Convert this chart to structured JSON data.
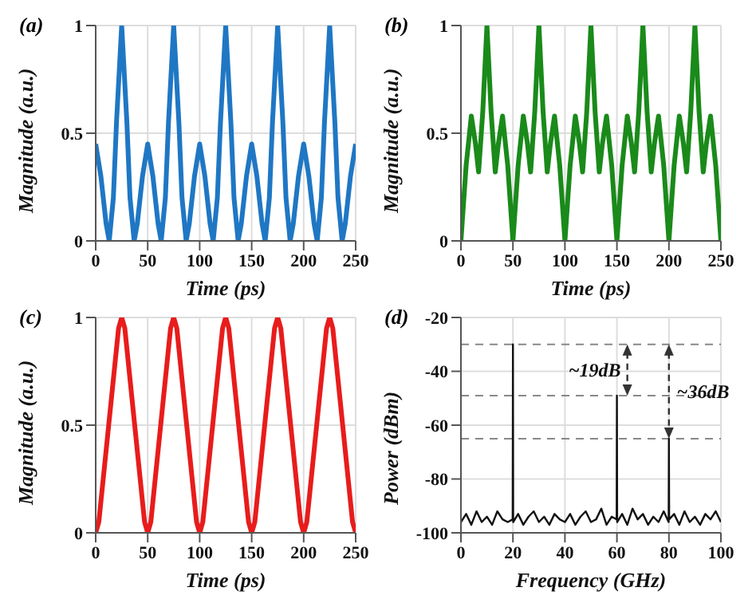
{
  "chart_data": [
    {
      "type": "line",
      "title": "(a)",
      "xlabel": "Time (ps)",
      "ylabel": "Magnitude (a.u.)",
      "xlim": [
        0,
        250
      ],
      "xticks": [
        0,
        50,
        100,
        150,
        200,
        250
      ],
      "ylim": [
        0,
        1
      ],
      "yticks": [
        0,
        0.5,
        1
      ],
      "grid": true,
      "x": [
        0,
        5,
        10,
        13,
        17,
        20,
        25,
        30,
        33,
        37,
        40,
        45,
        50,
        55,
        60,
        63,
        67,
        70,
        75,
        80,
        83,
        87,
        90,
        95,
        100,
        105,
        110,
        113,
        117,
        120,
        125,
        130,
        133,
        137,
        140,
        145,
        150,
        155,
        160,
        163,
        167,
        170,
        175,
        180,
        183,
        187,
        190,
        195,
        200,
        205,
        210,
        213,
        217,
        220,
        225,
        230,
        233,
        237,
        240,
        245,
        250
      ],
      "series": [
        {
          "color": "#1f77c4",
          "values": [
            0.45,
            0.3,
            0.08,
            0,
            0.2,
            0.55,
            1,
            0.55,
            0.2,
            0,
            0.08,
            0.3,
            0.45,
            0.3,
            0.08,
            0,
            0.2,
            0.55,
            1,
            0.55,
            0.2,
            0,
            0.08,
            0.3,
            0.45,
            0.3,
            0.08,
            0,
            0.2,
            0.55,
            1,
            0.55,
            0.2,
            0,
            0.08,
            0.3,
            0.45,
            0.3,
            0.08,
            0,
            0.2,
            0.55,
            1,
            0.55,
            0.2,
            0,
            0.08,
            0.3,
            0.45,
            0.3,
            0.08,
            0,
            0.2,
            0.55,
            1,
            0.55,
            0.2,
            0,
            0.08,
            0.3,
            0.45
          ]
        }
      ]
    },
    {
      "type": "line",
      "title": "(b)",
      "xlabel": "Time (ps)",
      "ylabel": "Magnitude (a.u.)",
      "xlim": [
        0,
        250
      ],
      "xticks": [
        0,
        50,
        100,
        150,
        200,
        250
      ],
      "ylim": [
        0,
        1
      ],
      "yticks": [
        0,
        0.5,
        1
      ],
      "grid": true,
      "x": [
        0,
        5,
        10,
        14,
        17,
        21,
        25,
        29,
        33,
        36,
        40,
        45,
        50,
        55,
        60,
        64,
        67,
        71,
        75,
        79,
        83,
        86,
        90,
        95,
        100,
        105,
        110,
        114,
        117,
        121,
        125,
        129,
        133,
        136,
        140,
        145,
        150,
        155,
        160,
        164,
        167,
        171,
        175,
        179,
        183,
        186,
        190,
        195,
        200,
        205,
        210,
        214,
        217,
        221,
        225,
        229,
        233,
        236,
        240,
        245,
        250
      ],
      "series": [
        {
          "color": "#1a8a1a",
          "values": [
            0,
            0.35,
            0.58,
            0.45,
            0.32,
            0.6,
            1,
            0.6,
            0.32,
            0.45,
            0.58,
            0.35,
            0,
            0.35,
            0.58,
            0.45,
            0.32,
            0.6,
            1,
            0.6,
            0.32,
            0.45,
            0.58,
            0.35,
            0,
            0.35,
            0.58,
            0.45,
            0.32,
            0.6,
            1,
            0.6,
            0.32,
            0.45,
            0.58,
            0.35,
            0,
            0.35,
            0.58,
            0.45,
            0.32,
            0.6,
            1,
            0.6,
            0.32,
            0.45,
            0.58,
            0.35,
            0,
            0.35,
            0.58,
            0.45,
            0.32,
            0.6,
            1,
            0.6,
            0.32,
            0.45,
            0.58,
            0.35,
            0
          ]
        }
      ]
    },
    {
      "type": "line",
      "title": "(c)",
      "xlabel": "Time (ps)",
      "ylabel": "Magnitude (a.u.)",
      "xlim": [
        0,
        250
      ],
      "xticks": [
        0,
        50,
        100,
        150,
        200,
        250
      ],
      "ylim": [
        0,
        1
      ],
      "yticks": [
        0,
        0.5,
        1
      ],
      "grid": true,
      "x": [
        0,
        3,
        12.5,
        22,
        25,
        28,
        37.5,
        47,
        50,
        53,
        62.5,
        72,
        75,
        78,
        87.5,
        97,
        100,
        103,
        112.5,
        122,
        125,
        128,
        137.5,
        147,
        150,
        153,
        162.5,
        172,
        175,
        178,
        187.5,
        197,
        200,
        203,
        212.5,
        222,
        225,
        228,
        237.5,
        247,
        250
      ],
      "series": [
        {
          "color": "#e81c1c",
          "values": [
            0,
            0.05,
            0.5,
            0.95,
            1,
            0.95,
            0.5,
            0.05,
            0,
            0.05,
            0.5,
            0.95,
            1,
            0.95,
            0.5,
            0.05,
            0,
            0.05,
            0.5,
            0.95,
            1,
            0.95,
            0.5,
            0.05,
            0,
            0.05,
            0.5,
            0.95,
            1,
            0.95,
            0.5,
            0.05,
            0,
            0.05,
            0.5,
            0.95,
            1,
            0.95,
            0.5,
            0.05,
            0
          ]
        }
      ]
    },
    {
      "type": "line",
      "title": "(d)",
      "xlabel": "Frequency (GHz)",
      "ylabel": "Power (dBm)",
      "xlim": [
        0,
        100
      ],
      "xticks": [
        0,
        20,
        40,
        60,
        80,
        100
      ],
      "ylim": [
        -100,
        -20
      ],
      "yticks": [
        -100,
        -80,
        -60,
        -40,
        -20
      ],
      "grid": true,
      "x": [
        0,
        2,
        4,
        6,
        8,
        10,
        12,
        14,
        16,
        18,
        19.9,
        20,
        20.1,
        22,
        24,
        26,
        28,
        30,
        32,
        34,
        36,
        38,
        40,
        42,
        44,
        46,
        48,
        50,
        52,
        54,
        56,
        58,
        59.9,
        60,
        60.1,
        62,
        64,
        66,
        68,
        70,
        72,
        74,
        76,
        78,
        79.9,
        80,
        80.1,
        82,
        84,
        86,
        88,
        90,
        92,
        94,
        96,
        98,
        100
      ],
      "series": [
        {
          "color": "#111111",
          "values": [
            -96,
            -93,
            -97,
            -92,
            -96,
            -94,
            -97,
            -92,
            -95,
            -96,
            -95,
            -30,
            -96,
            -93,
            -97,
            -94,
            -92,
            -96,
            -94,
            -97,
            -93,
            -95,
            -96,
            -93,
            -97,
            -94,
            -92,
            -96,
            -95,
            -91,
            -97,
            -94,
            -95,
            -49,
            -96,
            -93,
            -97,
            -91,
            -95,
            -93,
            -97,
            -94,
            -96,
            -92,
            -96,
            -65,
            -95,
            -93,
            -97,
            -92,
            -96,
            -94,
            -97,
            -93,
            -95,
            -92,
            -96
          ]
        }
      ],
      "ref_lines": [
        {
          "axis": "y",
          "value": -30,
          "color": "#888888",
          "line_style": "dashed"
        },
        {
          "axis": "y",
          "value": -49,
          "color": "#888888",
          "line_style": "dashed"
        },
        {
          "axis": "y",
          "value": -65,
          "color": "#888888",
          "line_style": "dashed"
        }
      ],
      "annotations": [
        "~19dB",
        "~36dB"
      ]
    }
  ]
}
